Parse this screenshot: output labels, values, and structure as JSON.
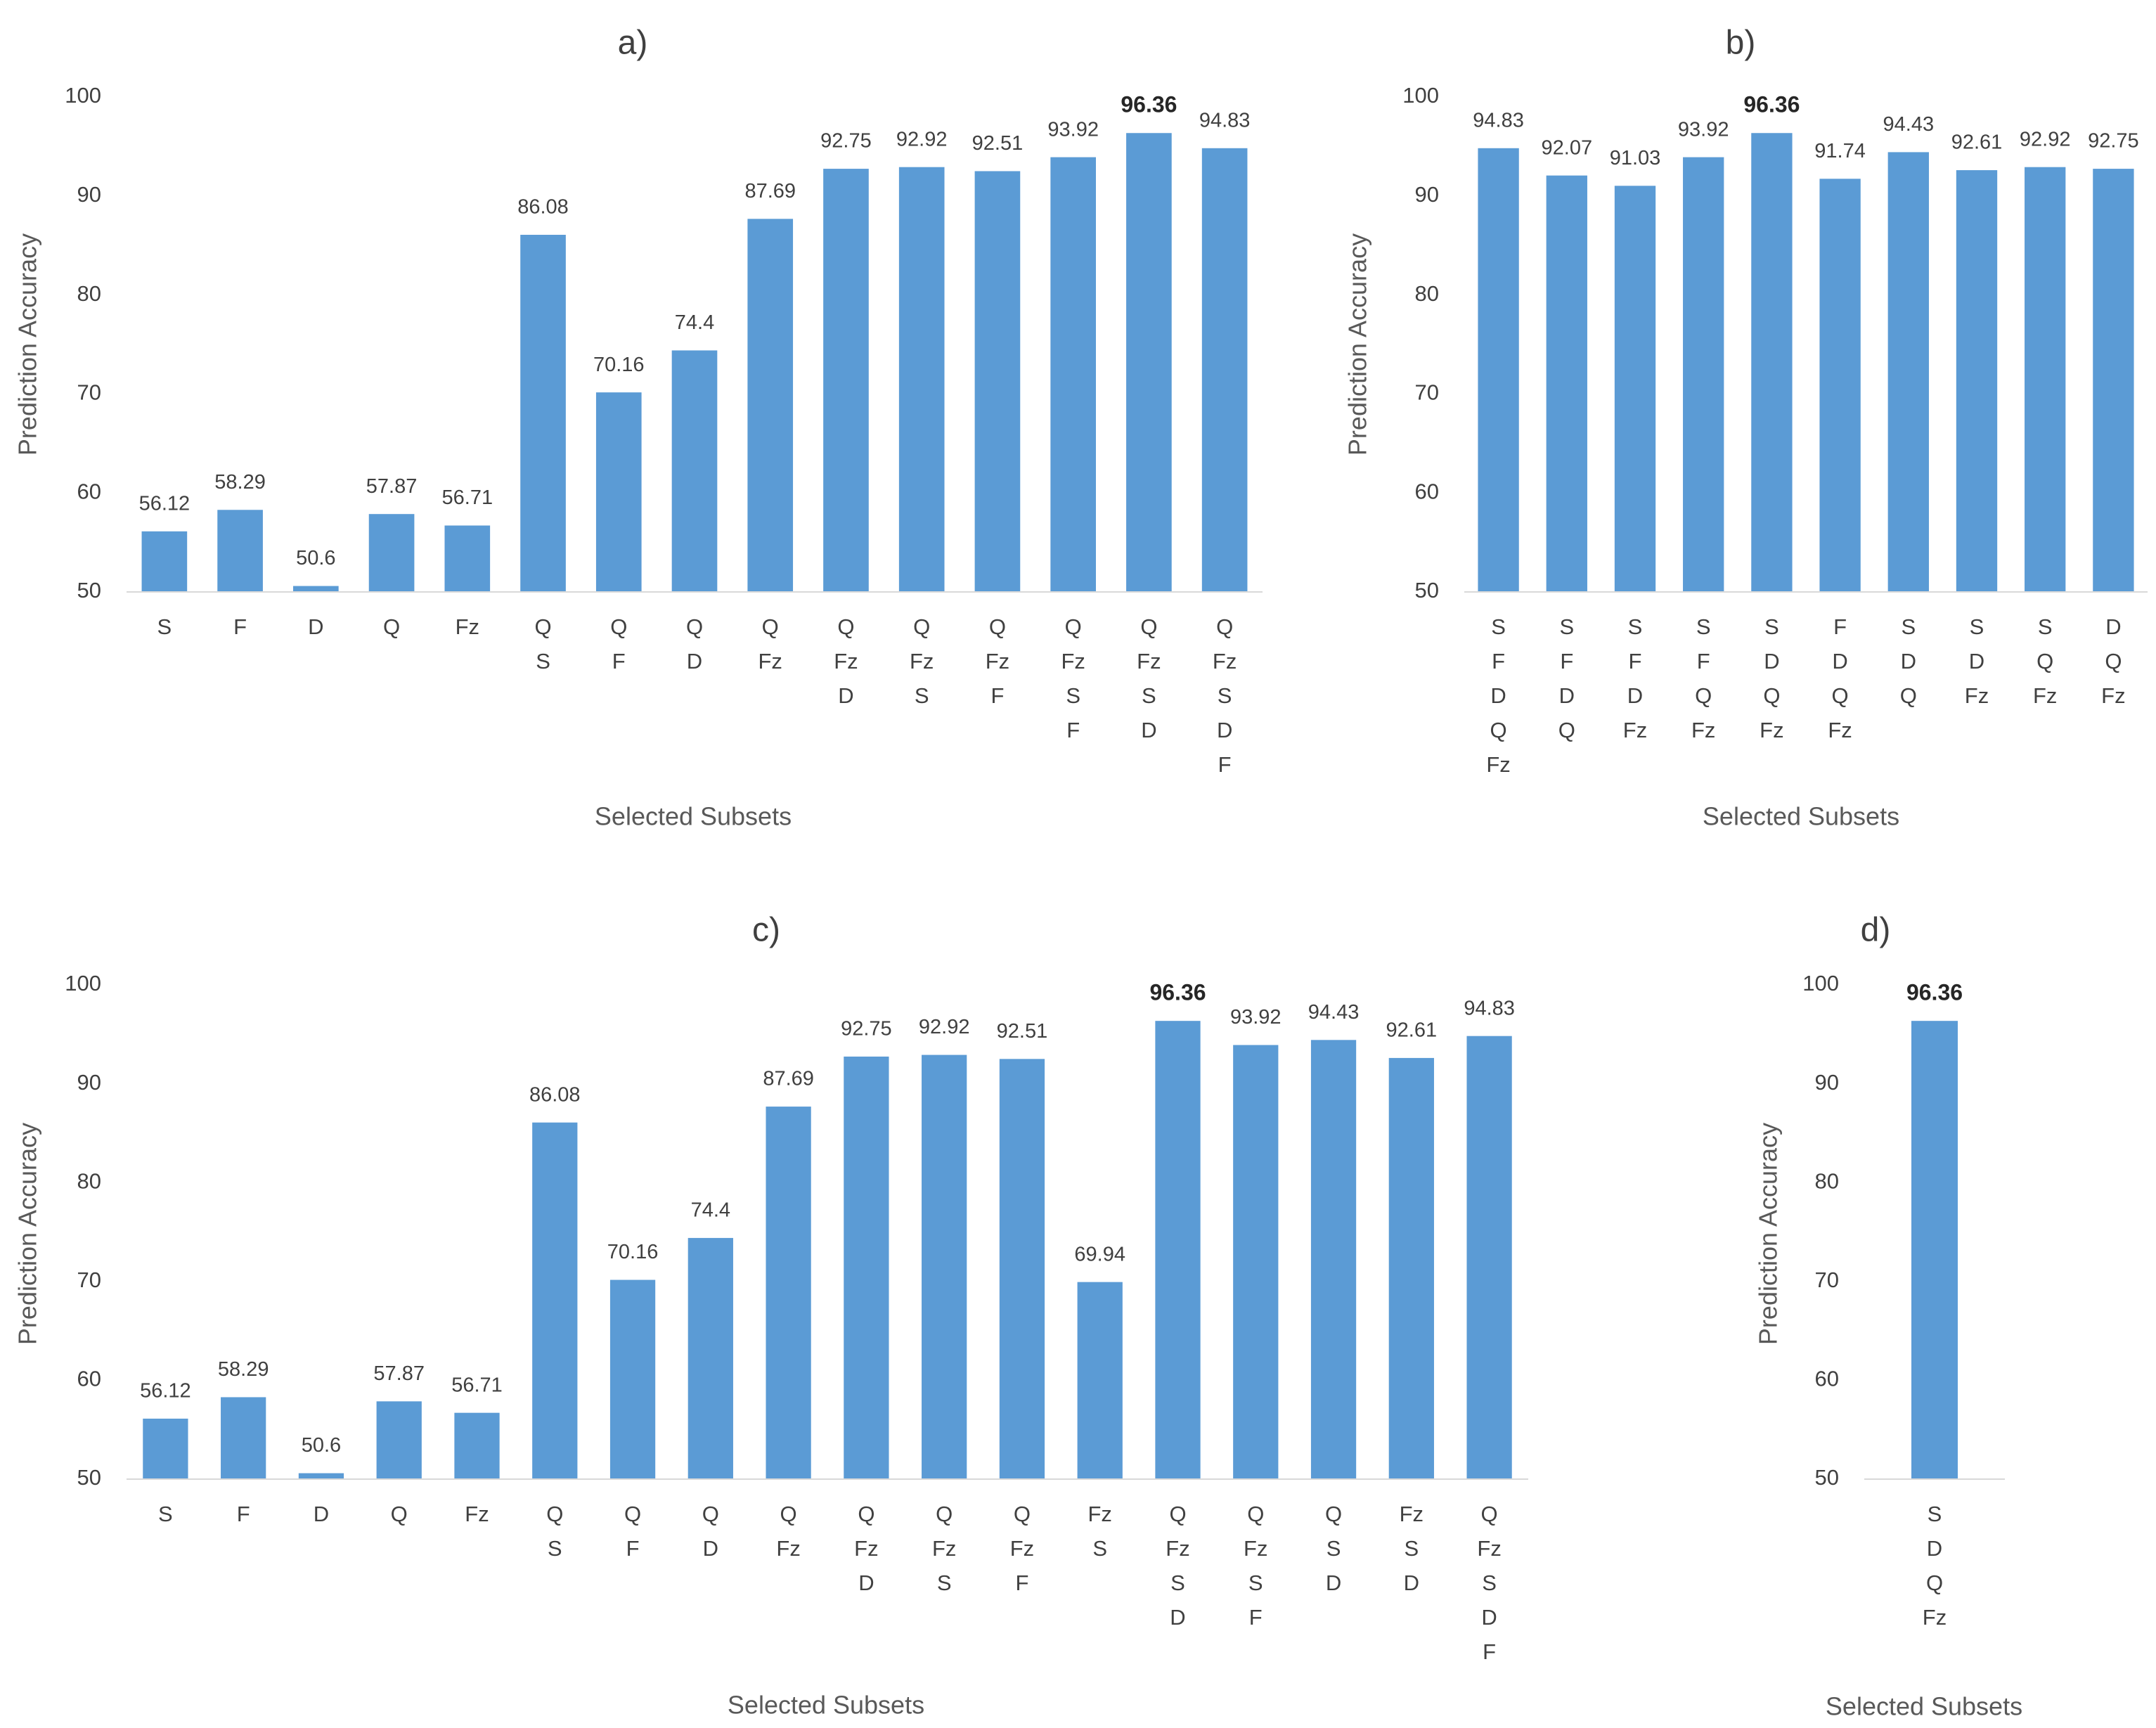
{
  "chart_data": [
    {
      "type": "bar",
      "title": "a)",
      "xlabel": "Selected Subsets",
      "ylabel": "Prediction Accuracy",
      "ylim": [
        50,
        100
      ],
      "yticks": [
        "50",
        "60",
        "70",
        "80",
        "90",
        "100"
      ],
      "categories": [
        [
          "S"
        ],
        [
          "F"
        ],
        [
          "D"
        ],
        [
          "Q"
        ],
        [
          "Fz"
        ],
        [
          "Q",
          "S"
        ],
        [
          "Q",
          "F"
        ],
        [
          "Q",
          "D"
        ],
        [
          "Q",
          "Fz"
        ],
        [
          "Q",
          "Fz",
          "D"
        ],
        [
          "Q",
          "Fz",
          "S"
        ],
        [
          "Q",
          "Fz",
          "F"
        ],
        [
          "Q",
          "Fz",
          "S",
          "F"
        ],
        [
          "Q",
          "Fz",
          "S",
          "D"
        ],
        [
          "Q",
          "Fz",
          "S",
          "D",
          "F"
        ]
      ],
      "values": [
        56.12,
        58.29,
        50.6,
        57.87,
        56.71,
        86.08,
        70.16,
        74.4,
        87.69,
        92.75,
        92.92,
        92.51,
        93.92,
        96.36,
        94.83
      ],
      "labels": [
        "56.12",
        "58.29",
        "50.6",
        "57.87",
        "56.71",
        "86.08",
        "70.16",
        "74.4",
        "87.69",
        "92.75",
        "92.92",
        "92.51",
        "93.92",
        "96.36",
        "94.83"
      ],
      "highlight": 13
    },
    {
      "type": "bar",
      "title": "b)",
      "xlabel": "Selected Subsets",
      "ylabel": "Prediction Accuracy",
      "ylim": [
        50,
        100
      ],
      "yticks": [
        "50",
        "60",
        "70",
        "80",
        "90",
        "100"
      ],
      "categories": [
        [
          "S",
          "F",
          "D",
          "Q",
          "Fz"
        ],
        [
          "S",
          "F",
          "D",
          "Q"
        ],
        [
          "S",
          "F",
          "D",
          "Fz"
        ],
        [
          "S",
          "F",
          "Q",
          "Fz"
        ],
        [
          "S",
          "D",
          "Q",
          "Fz"
        ],
        [
          "F",
          "D",
          "Q",
          "Fz"
        ],
        [
          "S",
          "D",
          "Q"
        ],
        [
          "S",
          "D",
          "Fz"
        ],
        [
          "S",
          "Q",
          "Fz"
        ],
        [
          "D",
          "Q",
          "Fz"
        ]
      ],
      "values": [
        94.83,
        92.07,
        91.03,
        93.92,
        96.36,
        91.74,
        94.43,
        92.61,
        92.92,
        92.75
      ],
      "labels": [
        "94.83",
        "92.07",
        "91.03",
        "93.92",
        "96.36",
        "91.74",
        "94.43",
        "92.61",
        "92.92",
        "92.75"
      ],
      "highlight": 4
    },
    {
      "type": "bar",
      "title": "c)",
      "xlabel": "Selected Subsets",
      "ylabel": "Prediction Accuracy",
      "ylim": [
        50,
        100
      ],
      "yticks": [
        "50",
        "60",
        "70",
        "80",
        "90",
        "100"
      ],
      "categories": [
        [
          "S"
        ],
        [
          "F"
        ],
        [
          "D"
        ],
        [
          "Q"
        ],
        [
          "Fz"
        ],
        [
          "Q",
          "S"
        ],
        [
          "Q",
          "F"
        ],
        [
          "Q",
          "D"
        ],
        [
          "Q",
          "Fz"
        ],
        [
          "Q",
          "Fz",
          "D"
        ],
        [
          "Q",
          "Fz",
          "S"
        ],
        [
          "Q",
          "Fz",
          "F"
        ],
        [
          "Fz",
          "S"
        ],
        [
          "Q",
          "Fz",
          "S",
          "D"
        ],
        [
          "Q",
          "Fz",
          "S",
          "F"
        ],
        [
          "Q",
          "S",
          "D"
        ],
        [
          "Fz",
          "S",
          "D"
        ],
        [
          "Q",
          "Fz",
          "S",
          "D",
          "F"
        ]
      ],
      "values": [
        56.12,
        58.29,
        50.6,
        57.87,
        56.71,
        86.08,
        70.16,
        74.4,
        87.69,
        92.75,
        92.92,
        92.51,
        69.94,
        96.36,
        93.92,
        94.43,
        92.61,
        94.83
      ],
      "labels": [
        "56.12",
        "58.29",
        "50.6",
        "57.87",
        "56.71",
        "86.08",
        "70.16",
        "74.4",
        "87.69",
        "92.75",
        "92.92",
        "92.51",
        "69.94",
        "96.36",
        "93.92",
        "94.43",
        "92.61",
        "94.83"
      ],
      "highlight": 13
    },
    {
      "type": "bar",
      "title": "d)",
      "xlabel": "Selected Subsets",
      "ylabel": "Prediction Accuracy",
      "ylim": [
        50,
        100
      ],
      "yticks": [
        "50",
        "60",
        "70",
        "80",
        "90",
        "100"
      ],
      "categories": [
        [
          "S",
          "D",
          "Q",
          "Fz"
        ]
      ],
      "values": [
        96.36
      ],
      "labels": [
        "96.36"
      ],
      "highlight": 0
    }
  ],
  "colors": {
    "bar": "#5b9bd5",
    "axis": "#d9d9d9",
    "text": "#404040"
  }
}
